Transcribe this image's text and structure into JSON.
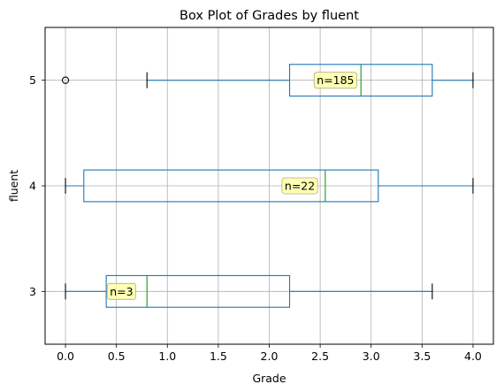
{
  "chart_data": {
    "type": "boxplot",
    "title": "Box Plot of Grades by fluent",
    "xlabel": "Grade",
    "ylabel": "fluent",
    "xlim": [
      -0.2,
      4.2
    ],
    "xticks": [
      0.0,
      0.5,
      1.0,
      1.5,
      2.0,
      2.5,
      3.0,
      3.5,
      4.0
    ],
    "xtick_labels": [
      "0.0",
      "0.5",
      "1.0",
      "1.5",
      "2.0",
      "2.5",
      "3.0",
      "3.5",
      "4.0"
    ],
    "grid": true,
    "categories": [
      "3",
      "4",
      "5"
    ],
    "boxes": [
      {
        "category": "3",
        "whisker_low": 0.0,
        "q1": 0.4,
        "median": 0.8,
        "q3": 2.2,
        "whisker_high": 3.6,
        "fliers": [],
        "annotation": "n=3",
        "annotation_x": 0.55
      },
      {
        "category": "4",
        "whisker_low": 0.0,
        "q1": 0.18,
        "median": 2.55,
        "q3": 3.07,
        "whisker_high": 4.0,
        "fliers": [],
        "annotation": "n=22",
        "annotation_x": 2.3
      },
      {
        "category": "5",
        "whisker_low": 0.8,
        "q1": 2.2,
        "median": 2.9,
        "q3": 3.6,
        "whisker_high": 4.0,
        "fliers": [
          0.0
        ],
        "annotation": "n=185",
        "annotation_x": 2.65
      }
    ],
    "colors": {
      "box": "#1f77b4",
      "median": "#2ca02c",
      "cap": "#000000",
      "annotation_bg": "#ffffa8"
    }
  }
}
